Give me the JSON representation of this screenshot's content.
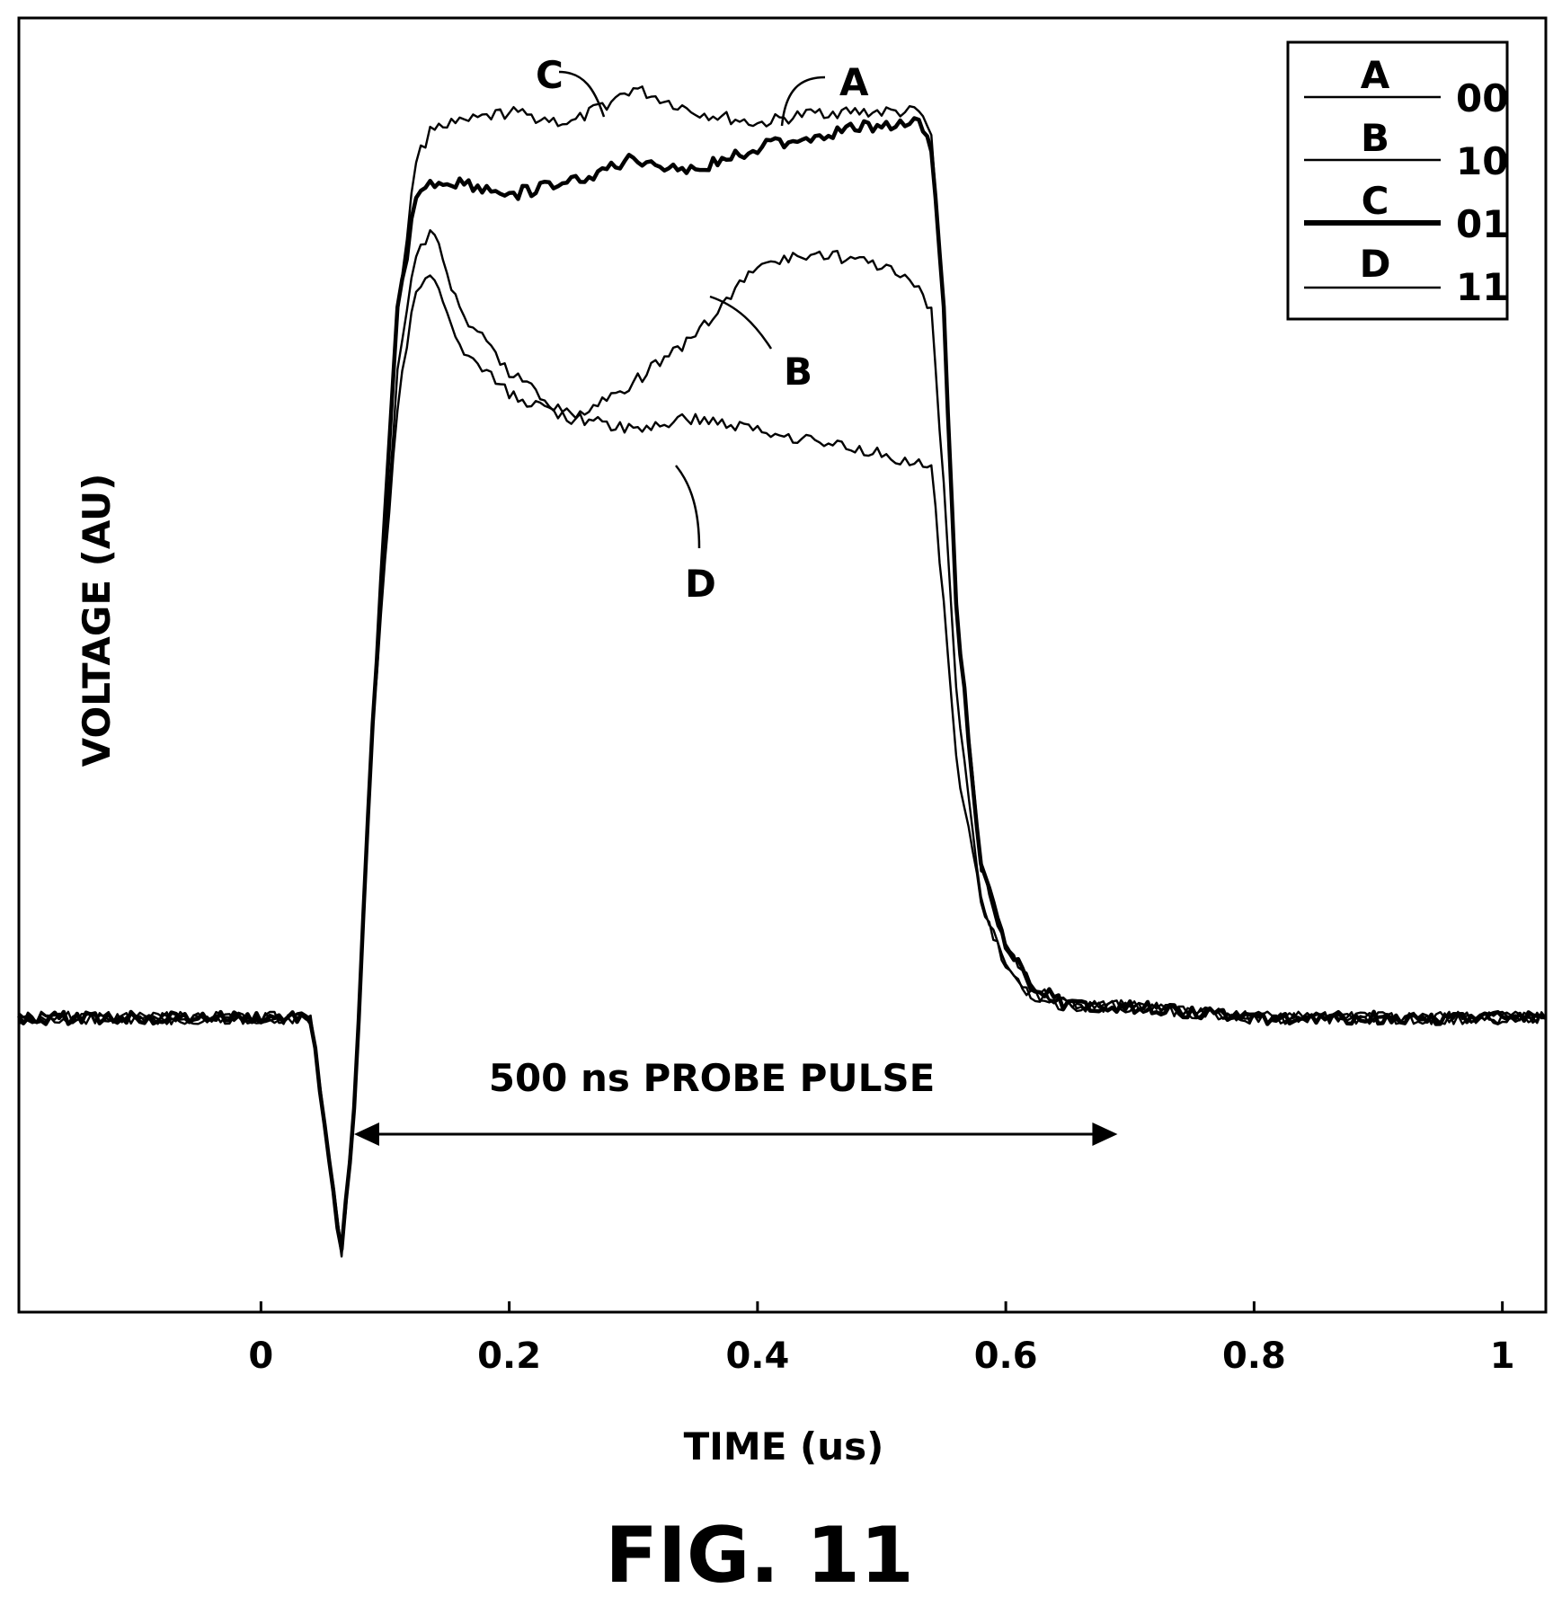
{
  "figure": {
    "caption": "FIG. 11"
  },
  "chart_data": {
    "type": "line",
    "xlabel": "TIME (us)",
    "ylabel": "VOLTAGE (AU)",
    "xlim": [
      -0.195,
      1.035
    ],
    "ylim": [
      -0.05,
      1.05
    ],
    "x_ticks": [
      0,
      0.2,
      0.4,
      0.6,
      0.8,
      1
    ],
    "x_tick_labels": [
      "0",
      "0.2",
      "0.4",
      "0.6",
      "0.8",
      "1"
    ],
    "grid": false,
    "legend_position": "top-right",
    "legend": [
      {
        "letter": "A",
        "code": "00",
        "weight": "thin"
      },
      {
        "letter": "B",
        "code": "10",
        "weight": "thin"
      },
      {
        "letter": "C",
        "code": "01",
        "weight": "thick"
      },
      {
        "letter": "D",
        "code": "11",
        "weight": "thin"
      }
    ],
    "series": [
      {
        "name": "A",
        "x": [
          -0.195,
          0.0,
          0.04,
          0.055,
          0.065,
          0.075,
          0.09,
          0.11,
          0.125,
          0.14,
          0.16,
          0.2,
          0.25,
          0.3,
          0.35,
          0.4,
          0.45,
          0.5,
          0.53,
          0.54,
          0.55,
          0.56,
          0.58,
          0.6,
          0.62,
          0.65,
          0.7,
          0.8,
          0.9,
          1.0,
          1.035
        ],
        "y": [
          0.2,
          0.2,
          0.2,
          0.08,
          0.0,
          0.12,
          0.45,
          0.8,
          0.93,
          0.96,
          0.96,
          0.97,
          0.96,
          0.99,
          0.97,
          0.96,
          0.97,
          0.97,
          0.97,
          0.95,
          0.8,
          0.55,
          0.33,
          0.26,
          0.23,
          0.21,
          0.21,
          0.2,
          0.2,
          0.2,
          0.2
        ]
      },
      {
        "name": "B",
        "x": [
          -0.195,
          0.0,
          0.04,
          0.055,
          0.065,
          0.075,
          0.09,
          0.11,
          0.125,
          0.14,
          0.16,
          0.2,
          0.25,
          0.3,
          0.35,
          0.4,
          0.45,
          0.5,
          0.53,
          0.54,
          0.55,
          0.56,
          0.58,
          0.6,
          0.62,
          0.65,
          0.7,
          0.8,
          0.9,
          1.0,
          1.035
        ],
        "y": [
          0.2,
          0.2,
          0.2,
          0.08,
          0.0,
          0.12,
          0.45,
          0.75,
          0.85,
          0.87,
          0.8,
          0.75,
          0.71,
          0.74,
          0.78,
          0.84,
          0.85,
          0.84,
          0.82,
          0.8,
          0.65,
          0.48,
          0.3,
          0.25,
          0.22,
          0.21,
          0.21,
          0.2,
          0.2,
          0.2,
          0.2
        ]
      },
      {
        "name": "C",
        "x": [
          -0.195,
          0.0,
          0.04,
          0.055,
          0.065,
          0.075,
          0.09,
          0.11,
          0.125,
          0.14,
          0.16,
          0.2,
          0.25,
          0.3,
          0.35,
          0.4,
          0.45,
          0.5,
          0.53,
          0.54,
          0.55,
          0.56,
          0.58,
          0.6,
          0.62,
          0.65,
          0.7,
          0.8,
          0.9,
          1.0,
          1.035
        ],
        "y": [
          0.2,
          0.2,
          0.2,
          0.08,
          0.0,
          0.12,
          0.45,
          0.8,
          0.9,
          0.91,
          0.91,
          0.9,
          0.91,
          0.93,
          0.92,
          0.94,
          0.95,
          0.96,
          0.96,
          0.94,
          0.8,
          0.55,
          0.33,
          0.26,
          0.23,
          0.21,
          0.21,
          0.2,
          0.2,
          0.2,
          0.2
        ]
      },
      {
        "name": "D",
        "x": [
          -0.195,
          0.0,
          0.04,
          0.055,
          0.065,
          0.075,
          0.09,
          0.11,
          0.125,
          0.14,
          0.16,
          0.2,
          0.25,
          0.3,
          0.35,
          0.4,
          0.45,
          0.5,
          0.53,
          0.54,
          0.55,
          0.56,
          0.58,
          0.6,
          0.62,
          0.65,
          0.7,
          0.8,
          0.9,
          1.0,
          1.035
        ],
        "y": [
          0.2,
          0.2,
          0.2,
          0.08,
          0.0,
          0.12,
          0.45,
          0.72,
          0.82,
          0.83,
          0.77,
          0.73,
          0.71,
          0.7,
          0.71,
          0.7,
          0.69,
          0.68,
          0.67,
          0.67,
          0.55,
          0.42,
          0.3,
          0.24,
          0.22,
          0.21,
          0.21,
          0.2,
          0.2,
          0.2,
          0.2
        ]
      }
    ],
    "annotations": {
      "curve_labels": [
        {
          "text": "A",
          "series": "A"
        },
        {
          "text": "B",
          "series": "B"
        },
        {
          "text": "C",
          "series": "C"
        },
        {
          "text": "D",
          "series": "D"
        }
      ],
      "span": {
        "label": "500 ns PROBE PULSE",
        "x_start": 0.075,
        "x_end": 0.69
      }
    }
  }
}
